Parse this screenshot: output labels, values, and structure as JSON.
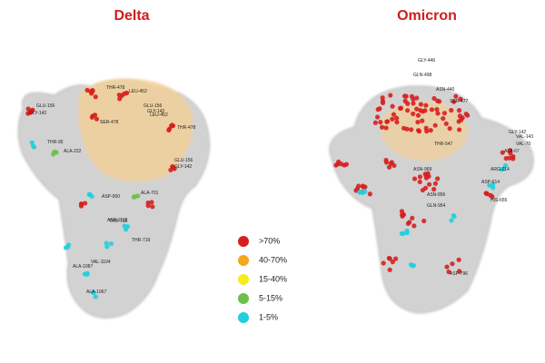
{
  "panels": [
    {
      "title": "Delta",
      "residues": [
        "GLU-156",
        "GLY-142",
        "THR-478",
        "LEU-452",
        "GLU-156",
        "GLY-142",
        "SER-478",
        "LEU-452",
        "THR-478",
        "THR-95",
        "ALA-222",
        "GLU-156",
        "GLY-142",
        "ASP-950",
        "ALA-701",
        "THR-716",
        "THR-719",
        "ASP-1118",
        "VAL-1104",
        "ALA-1087",
        "ALA-1067"
      ]
    },
    {
      "title": "Omicron",
      "residues": [
        "GLY-446",
        "GLN-498",
        "ASN-440",
        "SER-477",
        "GLY-142",
        "VAL-143",
        "VAL-70",
        "ALA-67",
        "THR-547",
        "ARG-214",
        "ASN-969",
        "ASP-614",
        "ASN-856",
        "HIS-655",
        "GLN-954",
        "ASP-796"
      ]
    }
  ],
  "legend": [
    {
      "label": ">70%",
      "color": "#d71f1f"
    },
    {
      "label": "40-70%",
      "color": "#f0a81c"
    },
    {
      "label": "15-40%",
      "color": "#f7ec1c"
    },
    {
      "label": "5-15%",
      "color": "#6cc04a"
    },
    {
      "label": "1-5%",
      "color": "#1fd0dd"
    }
  ]
}
